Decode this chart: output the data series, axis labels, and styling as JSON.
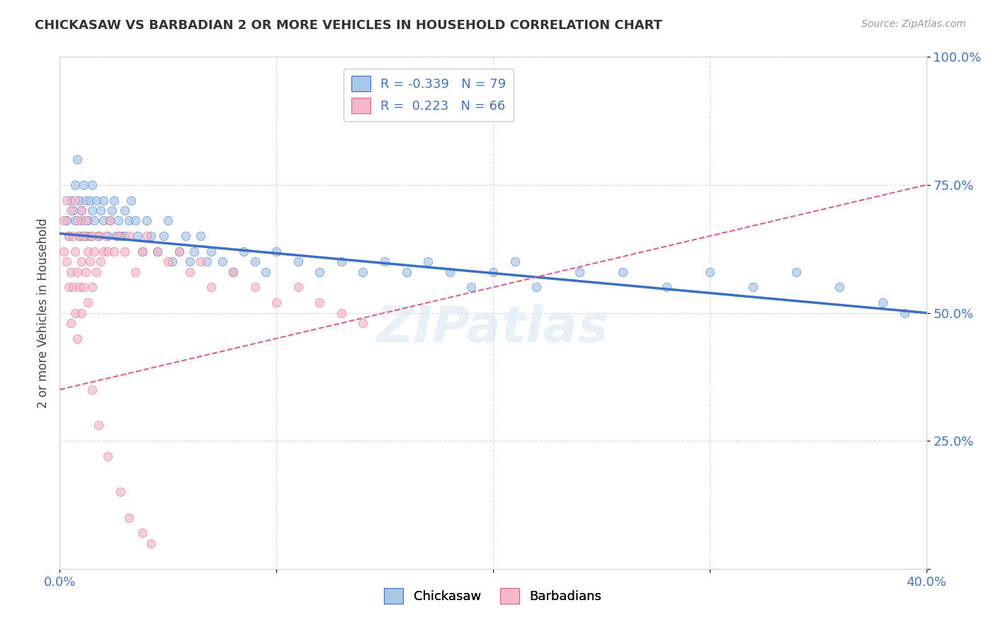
{
  "title": "CHICKASAW VS BARBADIAN 2 OR MORE VEHICLES IN HOUSEHOLD CORRELATION CHART",
  "source": "Source: ZipAtlas.com",
  "ylabel": "2 or more Vehicles in Household",
  "legend_labels": [
    "Chickasaw",
    "Barbadians"
  ],
  "r_chickasaw": -0.339,
  "n_chickasaw": 79,
  "r_barbadian": 0.223,
  "n_barbadian": 66,
  "xlim": [
    0.0,
    0.4
  ],
  "ylim": [
    0.0,
    1.0
  ],
  "color_chickasaw": "#a8c8e8",
  "color_barbadian": "#f4b8c8",
  "trendline_chickasaw": "#3a6fc4",
  "trendline_barbadian": "#e06080",
  "background_color": "#ffffff",
  "chickasaw_x": [
    0.003,
    0.004,
    0.005,
    0.006,
    0.007,
    0.007,
    0.008,
    0.009,
    0.009,
    0.01,
    0.01,
    0.011,
    0.012,
    0.012,
    0.013,
    0.014,
    0.014,
    0.015,
    0.015,
    0.016,
    0.017,
    0.018,
    0.019,
    0.02,
    0.02,
    0.022,
    0.023,
    0.024,
    0.025,
    0.026,
    0.027,
    0.028,
    0.03,
    0.03,
    0.032,
    0.033,
    0.035,
    0.036,
    0.038,
    0.04,
    0.042,
    0.045,
    0.048,
    0.05,
    0.052,
    0.055,
    0.058,
    0.06,
    0.062,
    0.065,
    0.068,
    0.07,
    0.075,
    0.08,
    0.085,
    0.09,
    0.095,
    0.1,
    0.11,
    0.12,
    0.13,
    0.14,
    0.15,
    0.16,
    0.17,
    0.18,
    0.19,
    0.2,
    0.21,
    0.22,
    0.24,
    0.26,
    0.28,
    0.3,
    0.32,
    0.34,
    0.36,
    0.38,
    0.39
  ],
  "chickasaw_y": [
    0.68,
    0.65,
    0.72,
    0.7,
    0.75,
    0.68,
    0.8,
    0.72,
    0.65,
    0.7,
    0.68,
    0.75,
    0.72,
    0.65,
    0.68,
    0.72,
    0.65,
    0.7,
    0.75,
    0.68,
    0.72,
    0.65,
    0.7,
    0.68,
    0.72,
    0.65,
    0.68,
    0.7,
    0.72,
    0.65,
    0.68,
    0.65,
    0.7,
    0.65,
    0.68,
    0.72,
    0.68,
    0.65,
    0.62,
    0.68,
    0.65,
    0.62,
    0.65,
    0.68,
    0.6,
    0.62,
    0.65,
    0.6,
    0.62,
    0.65,
    0.6,
    0.62,
    0.6,
    0.58,
    0.62,
    0.6,
    0.58,
    0.62,
    0.6,
    0.58,
    0.6,
    0.58,
    0.6,
    0.58,
    0.6,
    0.58,
    0.55,
    0.58,
    0.6,
    0.55,
    0.58,
    0.58,
    0.55,
    0.58,
    0.55,
    0.58,
    0.55,
    0.52,
    0.5
  ],
  "barbadian_x": [
    0.002,
    0.002,
    0.003,
    0.003,
    0.004,
    0.004,
    0.005,
    0.005,
    0.005,
    0.006,
    0.006,
    0.007,
    0.007,
    0.007,
    0.008,
    0.008,
    0.008,
    0.009,
    0.009,
    0.01,
    0.01,
    0.01,
    0.011,
    0.011,
    0.012,
    0.012,
    0.013,
    0.013,
    0.014,
    0.015,
    0.015,
    0.016,
    0.017,
    0.018,
    0.019,
    0.02,
    0.021,
    0.022,
    0.023,
    0.025,
    0.027,
    0.03,
    0.032,
    0.035,
    0.038,
    0.04,
    0.045,
    0.05,
    0.055,
    0.06,
    0.065,
    0.07,
    0.08,
    0.09,
    0.1,
    0.11,
    0.12,
    0.13,
    0.14,
    0.015,
    0.018,
    0.022,
    0.028,
    0.032,
    0.038,
    0.042
  ],
  "barbadian_y": [
    0.68,
    0.62,
    0.72,
    0.6,
    0.65,
    0.55,
    0.7,
    0.58,
    0.48,
    0.65,
    0.55,
    0.72,
    0.62,
    0.5,
    0.68,
    0.58,
    0.45,
    0.65,
    0.55,
    0.7,
    0.6,
    0.5,
    0.65,
    0.55,
    0.68,
    0.58,
    0.62,
    0.52,
    0.6,
    0.65,
    0.55,
    0.62,
    0.58,
    0.65,
    0.6,
    0.62,
    0.65,
    0.62,
    0.68,
    0.62,
    0.65,
    0.62,
    0.65,
    0.58,
    0.62,
    0.65,
    0.62,
    0.6,
    0.62,
    0.58,
    0.6,
    0.55,
    0.58,
    0.55,
    0.52,
    0.55,
    0.52,
    0.5,
    0.48,
    0.35,
    0.28,
    0.22,
    0.15,
    0.1,
    0.07,
    0.05
  ]
}
